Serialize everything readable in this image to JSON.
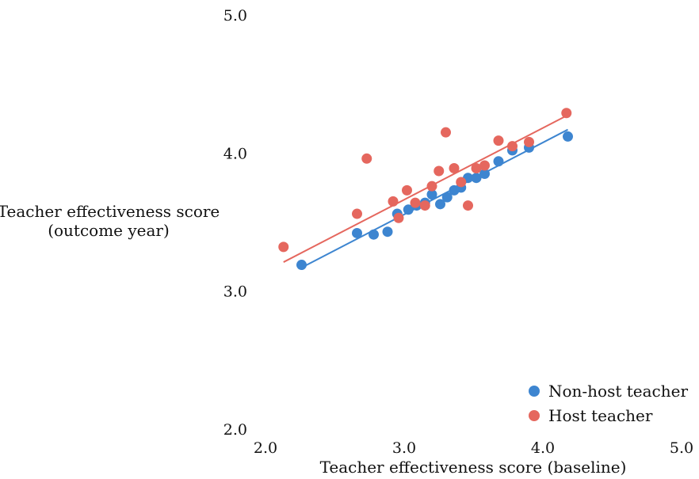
{
  "chart_data": {
    "type": "scatter",
    "title": "",
    "xlabel": "Teacher effectiveness score (baseline)",
    "ylabel_lines": [
      "Teacher effectiveness score",
      "(outcome year)"
    ],
    "xlim": [
      2.0,
      5.0
    ],
    "ylim": [
      2.0,
      5.0
    ],
    "x_ticks": [
      2.0,
      3.0,
      4.0,
      5.0
    ],
    "y_ticks": [
      2.0,
      3.0,
      4.0,
      5.0
    ],
    "x_tick_labels": [
      "2.0",
      "3.0",
      "4.0",
      "5.0"
    ],
    "y_tick_labels": [
      "2.0",
      "3.0",
      "4.0",
      "5.0"
    ],
    "grid": false,
    "legend_position": "bottom-right",
    "series": [
      {
        "name": "Non-host teacher",
        "color": "#3d85d0",
        "points": [
          [
            2.26,
            3.19
          ],
          [
            2.66,
            3.42
          ],
          [
            2.78,
            3.41
          ],
          [
            2.88,
            3.43
          ],
          [
            2.95,
            3.56
          ],
          [
            3.03,
            3.59
          ],
          [
            3.09,
            3.62
          ],
          [
            3.15,
            3.64
          ],
          [
            3.2,
            3.7
          ],
          [
            3.26,
            3.63
          ],
          [
            3.31,
            3.68
          ],
          [
            3.36,
            3.73
          ],
          [
            3.41,
            3.75
          ],
          [
            3.46,
            3.82
          ],
          [
            3.52,
            3.82
          ],
          [
            3.58,
            3.85
          ],
          [
            3.68,
            3.94
          ],
          [
            3.78,
            4.02
          ],
          [
            3.9,
            4.04
          ],
          [
            4.18,
            4.12
          ]
        ],
        "trend": [
          [
            2.26,
            3.17
          ],
          [
            4.18,
            4.17
          ]
        ]
      },
      {
        "name": "Host teacher",
        "color": "#e5675e",
        "points": [
          [
            2.13,
            3.32
          ],
          [
            2.66,
            3.56
          ],
          [
            2.73,
            3.96
          ],
          [
            2.92,
            3.65
          ],
          [
            2.96,
            3.53
          ],
          [
            3.02,
            3.73
          ],
          [
            3.08,
            3.64
          ],
          [
            3.15,
            3.62
          ],
          [
            3.2,
            3.76
          ],
          [
            3.25,
            3.87
          ],
          [
            3.3,
            4.15
          ],
          [
            3.36,
            3.89
          ],
          [
            3.41,
            3.79
          ],
          [
            3.46,
            3.62
          ],
          [
            3.52,
            3.89
          ],
          [
            3.58,
            3.91
          ],
          [
            3.68,
            4.09
          ],
          [
            3.78,
            4.05
          ],
          [
            3.9,
            4.08
          ],
          [
            4.17,
            4.29
          ]
        ],
        "trend": [
          [
            2.13,
            3.21
          ],
          [
            4.17,
            4.27
          ]
        ]
      }
    ]
  }
}
